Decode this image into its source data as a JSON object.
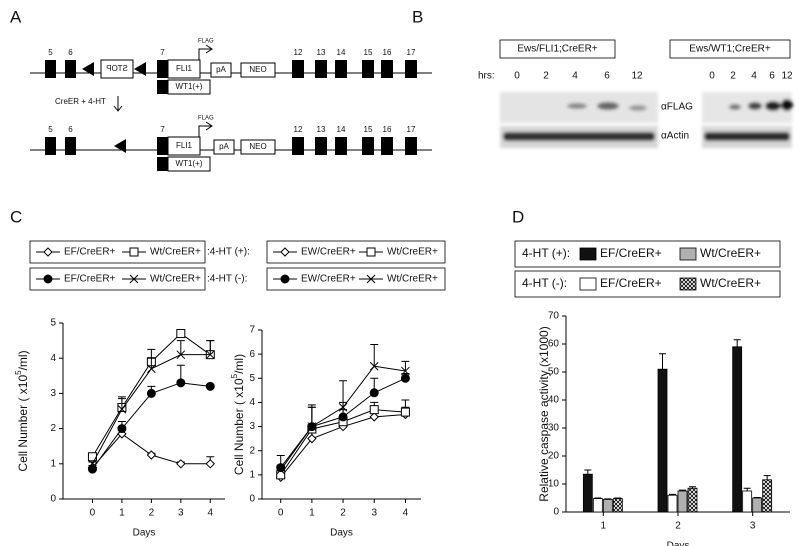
{
  "panel_labels": [
    "A",
    "B",
    "C",
    "D"
  ],
  "diagram": {
    "row1": {
      "exons_left": [
        "5",
        "6"
      ],
      "stop": "STOP",
      "exon7": "7",
      "fli": "FLI1",
      "flag": "FLAG",
      "pa": "pA",
      "neo": "NEO",
      "exons_right": [
        "12",
        "13",
        "14",
        "15",
        "16",
        "17"
      ],
      "wt1": "WT1(+)"
    },
    "step": "CreER + 4-HT",
    "row2": {
      "exons_left": [
        "5",
        "6"
      ],
      "exon7": "7",
      "fli": "FLI1",
      "flag": "FLAG",
      "pa": "pA",
      "neo": "NEO",
      "exons_right": [
        "12",
        "13",
        "14",
        "15",
        "16",
        "17"
      ],
      "wt1": "WT1(+)"
    }
  },
  "blot": {
    "groups": [
      "Ews/FLI1;CreER+",
      "Ews/WT1;CreER+"
    ],
    "hrs_label": "hrs:",
    "lanes": [
      [
        "0",
        "2",
        "4",
        "6",
        "12"
      ],
      [
        "0",
        "2",
        "4",
        "6",
        "12"
      ]
    ],
    "probes": [
      "αFLAG",
      "αActin"
    ]
  },
  "chart_data": [
    {
      "type": "line",
      "x": [
        0,
        1,
        2,
        3,
        4
      ],
      "xlim": [
        -1,
        4.5
      ],
      "xticks": [
        0,
        1,
        2,
        3,
        4
      ],
      "ylim": [
        0,
        5
      ],
      "yticks": [
        0,
        1,
        2,
        3,
        4,
        5
      ],
      "xlabel": "Days",
      "ylabel": [
        "Cell Number ( x10",
        "5",
        "/ml)"
      ],
      "legend_groups": [
        ":4-HT (+):",
        ":4-HT (-):"
      ],
      "series": [
        {
          "name": "EF/CreER+",
          "color": "#000000",
          "marker": "diamond",
          "filled": false,
          "values": [
            0.9,
            1.85,
            1.25,
            1.0,
            1.0
          ],
          "errors": [
            0.05,
            0.1,
            0.05,
            0.05,
            0.2
          ]
        },
        {
          "name": "Wt/CreER+",
          "color": "#000000",
          "marker": "square",
          "filled": false,
          "values": [
            1.2,
            2.6,
            3.9,
            4.7,
            4.1
          ],
          "errors": [
            0.05,
            0.3,
            0.35,
            0.1,
            0.4
          ]
        },
        {
          "name": "EF/CreER+",
          "color": "#000000",
          "marker": "circle",
          "filled": true,
          "values": [
            0.85,
            2.0,
            3.0,
            3.3,
            3.2
          ],
          "errors": [
            0.05,
            0.2,
            0.2,
            0.5,
            0.05
          ]
        },
        {
          "name": "Wt/CreER+",
          "color": "#000000",
          "marker": "x",
          "filled": false,
          "values": [
            1.0,
            2.55,
            3.7,
            4.1,
            4.1
          ],
          "errors": [
            0.05,
            0.3,
            0.3,
            0.4,
            0.4
          ]
        }
      ]
    },
    {
      "type": "line",
      "x": [
        0,
        1,
        2,
        3,
        4
      ],
      "xlim": [
        -0.6,
        4.5
      ],
      "xticks": [
        0,
        1,
        2,
        3,
        4
      ],
      "ylim": [
        0,
        7
      ],
      "yticks": [
        0,
        1,
        2,
        3,
        4,
        5,
        6,
        7
      ],
      "xlabel": "Days",
      "ylabel": [
        "Cell Number ( x10",
        "5",
        "/ml)"
      ],
      "series": [
        {
          "name": "EW/CreER+",
          "color": "#000000",
          "marker": "diamond",
          "filled": false,
          "values": [
            0.9,
            2.5,
            3.0,
            3.4,
            3.5
          ],
          "errors": [
            0.1,
            0.3,
            0.3,
            0.2,
            0.3
          ]
        },
        {
          "name": "Wt/CreER+",
          "color": "#000000",
          "marker": "square",
          "filled": false,
          "values": [
            1.0,
            2.9,
            3.2,
            3.7,
            3.6
          ],
          "errors": [
            0.2,
            0.9,
            0.5,
            0.3,
            0.5
          ]
        },
        {
          "name": "EW/CreER+",
          "color": "#000000",
          "marker": "circle",
          "filled": true,
          "values": [
            1.3,
            3.0,
            3.4,
            4.4,
            5.0
          ],
          "errors": [
            0.5,
            0.9,
            0.6,
            0.6,
            0.2
          ]
        },
        {
          "name": "Wt/CreER+",
          "color": "#000000",
          "marker": "x",
          "filled": false,
          "values": [
            1.2,
            3.0,
            3.8,
            5.5,
            5.3
          ],
          "errors": [
            0.2,
            0.8,
            1.1,
            0.9,
            0.4
          ]
        }
      ]
    },
    {
      "type": "bar",
      "categories": [
        "1",
        "2",
        "3"
      ],
      "ylim": [
        0,
        70
      ],
      "yticks": [
        0,
        10,
        20,
        30,
        40,
        50,
        60,
        70
      ],
      "xlabel": "Days",
      "ylabel": "Relative caspase activity (x1000)",
      "legend_groups": [
        "4-HT (+):",
        "4-HT (-):"
      ],
      "series": [
        {
          "name": "EF/CreER+",
          "color": "#111111",
          "hatch": false,
          "values": [
            13.5,
            51,
            59
          ],
          "errors": [
            1.5,
            5.5,
            2.5
          ]
        },
        {
          "name": "EF/CreER+",
          "color": "#ffffff",
          "hatch": false,
          "values": [
            4.8,
            6,
            7.5
          ],
          "errors": [
            0.2,
            0.3,
            1
          ]
        },
        {
          "name": "Wt/CreER+",
          "color": "#b0b0b0",
          "hatch": false,
          "values": [
            4.5,
            7.5,
            5
          ],
          "errors": [
            0.2,
            0.3,
            0.2
          ]
        },
        {
          "name": "Wt/CreER+",
          "color": "#ffffff",
          "hatch": true,
          "values": [
            4.8,
            8.5,
            11.5
          ],
          "errors": [
            0.2,
            0.5,
            1.5
          ]
        }
      ]
    }
  ]
}
